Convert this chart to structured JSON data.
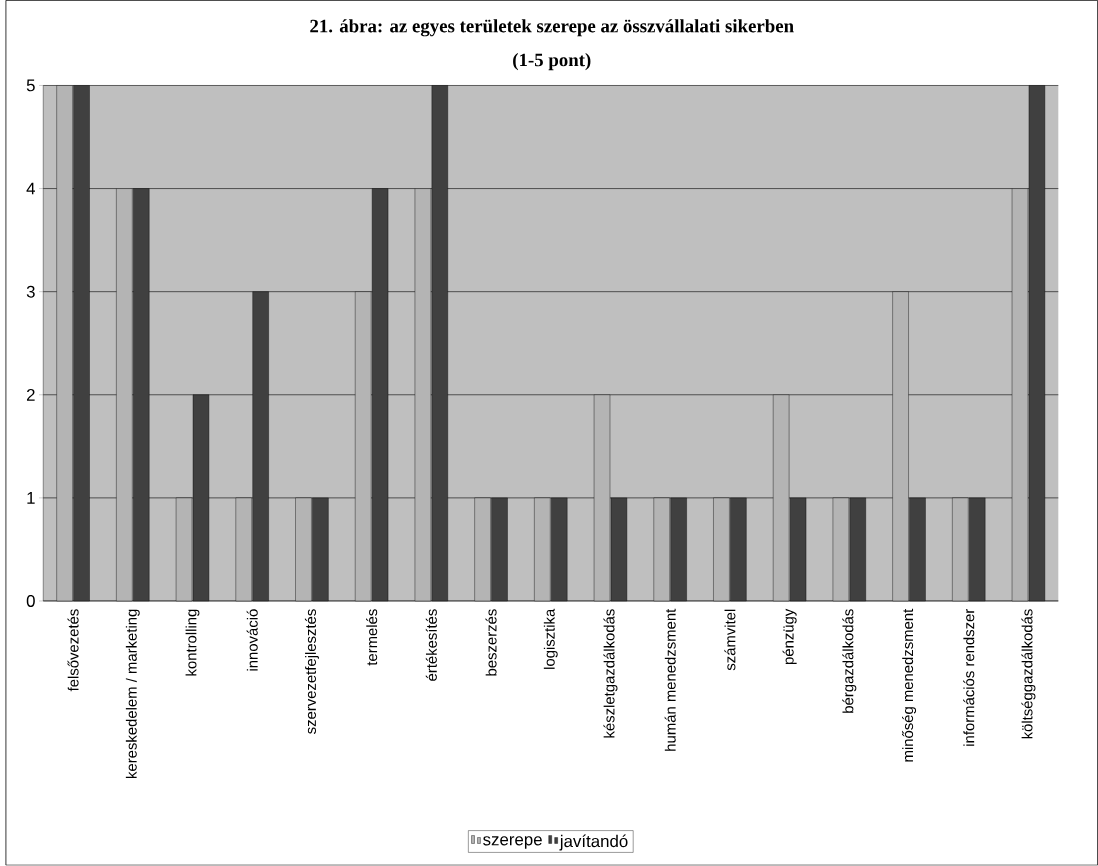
{
  "chart_data": {
    "type": "bar",
    "title": "21. ábra: az egyes területek szerepe az összvállalati sikerben",
    "subtitle": "(1-5 pont)",
    "categories": [
      "felsővezetés",
      "kereskedelem / marketing",
      "kontrolling",
      "innováció",
      "szervezetfejlesztés",
      "termelés",
      "értékesítés",
      "beszerzés",
      "logisztika",
      "készletgazdálkodás",
      "humán menedzsment",
      "számvitel",
      "pénzügy",
      "bérgazdálkodás",
      "minőség menedzsment",
      "információs rendszer",
      "költséggazdálkodás"
    ],
    "series": [
      {
        "name": "szerepe",
        "color": "#b4b4b4",
        "values": [
          5,
          4,
          1,
          1,
          1,
          3,
          4,
          1,
          1,
          2,
          1,
          1,
          2,
          1,
          3,
          1,
          4
        ]
      },
      {
        "name": "javítandó",
        "color": "#404040",
        "values": [
          5,
          4,
          2,
          3,
          1,
          4,
          5,
          1,
          1,
          1,
          1,
          1,
          1,
          1,
          1,
          1,
          5
        ]
      }
    ],
    "ylim": [
      0,
      5
    ],
    "yticks": [
      0,
      1,
      2,
      3,
      4,
      5
    ],
    "grid": "y",
    "legend": "bottom"
  }
}
